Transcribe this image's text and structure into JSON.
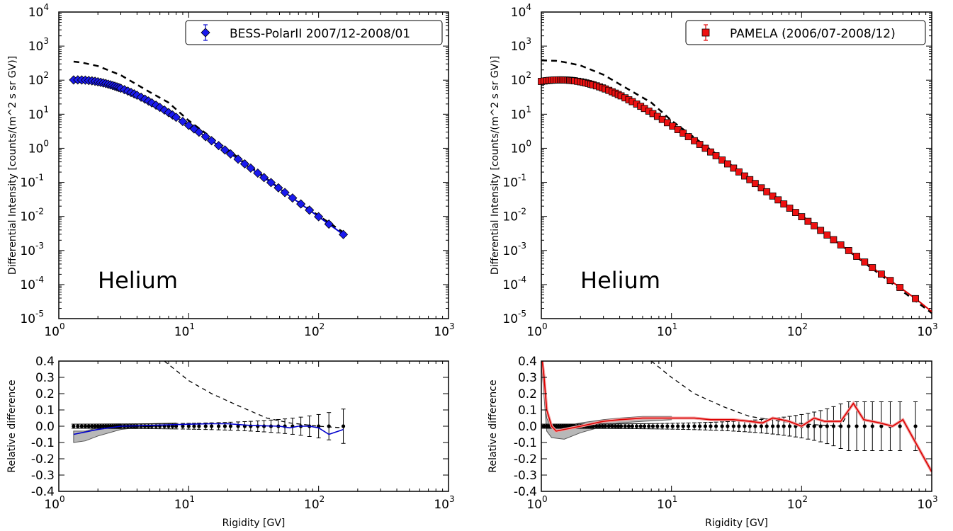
{
  "chart_data": [
    {
      "type": "scatter",
      "panel": "upper",
      "xscale": "log",
      "yscale": "log",
      "xlim": [
        1,
        1000
      ],
      "ylim": [
        1e-05,
        10000
      ],
      "x_ticks": [
        {
          "base": "10",
          "exp": "0",
          "v": 1
        },
        {
          "base": "10",
          "exp": "1",
          "v": 10
        },
        {
          "base": "10",
          "exp": "2",
          "v": 100
        },
        {
          "base": "10",
          "exp": "3",
          "v": 1000
        }
      ],
      "y_ticks": [
        {
          "base": "10",
          "exp": "-5",
          "v": -5
        },
        {
          "base": "10",
          "exp": "-4",
          "v": -4
        },
        {
          "base": "10",
          "exp": "-3",
          "v": -3
        },
        {
          "base": "10",
          "exp": "-2",
          "v": -2
        },
        {
          "base": "10",
          "exp": "-1",
          "v": -1
        },
        {
          "base": "10",
          "exp": "0",
          "v": 0
        },
        {
          "base": "10",
          "exp": "1",
          "v": 1
        },
        {
          "base": "10",
          "exp": "2",
          "v": 2
        },
        {
          "base": "10",
          "exp": "3",
          "v": 3
        },
        {
          "base": "10",
          "exp": "4",
          "v": 4
        }
      ],
      "ylabel": "Differential Intensity [counts/(m^2 s sr GV)]",
      "xlabel": "",
      "annotation": "Helium",
      "legend": {
        "label": "BESS-PolarII 2007/12-2008/01",
        "placement": "top-right",
        "marker": "diamond",
        "color": "#0000cc"
      },
      "marker_color": "#1a1aee",
      "model_color": "#0000cc",
      "grid": false,
      "rigidity_GV": [
        1.3,
        1.4,
        1.5,
        1.6,
        1.7,
        1.8,
        1.9,
        2.0,
        2.1,
        2.2,
        2.3,
        2.4,
        2.5,
        2.6,
        2.7,
        2.8,
        2.9,
        3.0,
        3.2,
        3.4,
        3.6,
        3.8,
        4.0,
        4.3,
        4.6,
        4.9,
        5.2,
        5.6,
        6.0,
        6.5,
        7.0,
        7.5,
        8.0,
        9.0,
        10,
        11,
        12,
        13.5,
        15,
        17,
        19,
        21,
        24,
        27,
        30,
        34,
        38,
        43,
        49,
        55,
        63,
        73,
        85,
        100,
        120,
        155
      ],
      "model_dashed": [
        [
          1.3,
          350
        ],
        [
          1.5,
          330
        ],
        [
          2,
          260
        ],
        [
          3,
          140
        ],
        [
          5,
          45
        ],
        [
          7,
          22
        ],
        [
          10,
          6.5
        ],
        [
          20,
          0.9
        ],
        [
          50,
          0.066
        ],
        [
          100,
          0.0105
        ],
        [
          155,
          0.0034
        ]
      ]
    },
    {
      "type": "scatter",
      "panel": "upper",
      "xscale": "log",
      "yscale": "log",
      "xlim": [
        1,
        1000
      ],
      "ylim": [
        1e-05,
        10000
      ],
      "x_ticks": [
        {
          "base": "10",
          "exp": "0",
          "v": 1
        },
        {
          "base": "10",
          "exp": "1",
          "v": 10
        },
        {
          "base": "10",
          "exp": "2",
          "v": 100
        },
        {
          "base": "10",
          "exp": "3",
          "v": 1000
        }
      ],
      "y_ticks": [
        {
          "base": "10",
          "exp": "-5",
          "v": -5
        },
        {
          "base": "10",
          "exp": "-4",
          "v": -4
        },
        {
          "base": "10",
          "exp": "-3",
          "v": -3
        },
        {
          "base": "10",
          "exp": "-2",
          "v": -2
        },
        {
          "base": "10",
          "exp": "-1",
          "v": -1
        },
        {
          "base": "10",
          "exp": "0",
          "v": 0
        },
        {
          "base": "10",
          "exp": "1",
          "v": 1
        },
        {
          "base": "10",
          "exp": "2",
          "v": 2
        },
        {
          "base": "10",
          "exp": "3",
          "v": 3
        },
        {
          "base": "10",
          "exp": "4",
          "v": 4
        }
      ],
      "ylabel": "Differential Intensity [counts/(m^2 s sr GV)]",
      "xlabel": "",
      "annotation": "Helium",
      "legend": {
        "label": "PAMELA (2006/07-2008/12)",
        "placement": "top-right",
        "marker": "square",
        "color": "#dd0000"
      },
      "marker_color": "#ee1111",
      "model_color": "#dd0000",
      "grid": false,
      "rigidity_GV": [
        1.0,
        1.05,
        1.1,
        1.15,
        1.2,
        1.25,
        1.3,
        1.35,
        1.4,
        1.45,
        1.5,
        1.55,
        1.6,
        1.65,
        1.7,
        1.75,
        1.8,
        1.9,
        2.0,
        2.1,
        2.2,
        2.3,
        2.4,
        2.5,
        2.65,
        2.8,
        2.95,
        3.1,
        3.3,
        3.5,
        3.7,
        3.9,
        4.1,
        4.4,
        4.7,
        5.0,
        5.4,
        5.8,
        6.2,
        6.7,
        7.2,
        7.8,
        8.5,
        9.3,
        10.2,
        11.2,
        12.3,
        13.5,
        15,
        16.5,
        18.2,
        20,
        22,
        24.5,
        27,
        30,
        33,
        36.5,
        40,
        44,
        49,
        54,
        60,
        66,
        73,
        81,
        90,
        100,
        112,
        125,
        140,
        157,
        176,
        200,
        230,
        265,
        305,
        350,
        410,
        480,
        570,
        750
      ]
    },
    {
      "type": "scatter",
      "panel": "lower",
      "xscale": "log",
      "xlim": [
        1,
        1000
      ],
      "ylim": [
        -0.4,
        0.4
      ],
      "x_ticks": [
        {
          "base": "10",
          "exp": "0",
          "v": 1
        },
        {
          "base": "10",
          "exp": "1",
          "v": 10
        },
        {
          "base": "10",
          "exp": "2",
          "v": 100
        },
        {
          "base": "10",
          "exp": "3",
          "v": 1000
        }
      ],
      "y_ticks": [
        "0.4",
        "0.3",
        "0.2",
        "0.1",
        "0.0",
        "-0.1",
        "-0.2",
        "-0.3",
        "-0.4"
      ],
      "xlabel": "Rigidity [GV]",
      "ylabel": "Relative difference",
      "line_color": "#0000cc",
      "grid": false,
      "rigidity_GV": [
        1.3,
        1.4,
        1.5,
        1.6,
        1.7,
        1.8,
        1.9,
        2.0,
        2.1,
        2.2,
        2.3,
        2.4,
        2.5,
        2.6,
        2.7,
        2.8,
        2.9,
        3.0,
        3.2,
        3.4,
        3.6,
        3.8,
        4.0,
        4.3,
        4.6,
        4.9,
        5.2,
        5.6,
        6.0,
        6.5,
        7.0,
        7.5,
        8.0,
        9.0,
        10,
        11,
        12,
        13.5,
        15,
        17,
        19,
        21,
        24,
        27,
        30,
        34,
        38,
        43,
        49,
        55,
        63,
        73,
        85,
        100,
        120,
        155
      ],
      "solid_line": [
        [
          1.3,
          -0.05
        ],
        [
          1.5,
          -0.04
        ],
        [
          2,
          -0.02
        ],
        [
          3,
          0.0
        ],
        [
          5,
          0.005
        ],
        [
          8,
          0.01
        ],
        [
          10,
          0.012
        ],
        [
          15,
          0.015
        ],
        [
          20,
          0.015
        ],
        [
          30,
          0.005
        ],
        [
          50,
          0.0
        ],
        [
          60,
          -0.01
        ],
        [
          70,
          0.0
        ],
        [
          85,
          0.0
        ],
        [
          100,
          -0.01
        ],
        [
          120,
          -0.05
        ],
        [
          155,
          -0.02
        ]
      ],
      "dashed_line": [
        [
          6.5,
          0.4
        ],
        [
          10,
          0.28
        ],
        [
          15,
          0.2
        ],
        [
          25,
          0.12
        ],
        [
          40,
          0.05
        ],
        [
          60,
          0.02
        ],
        [
          100,
          0.0
        ],
        [
          155,
          -0.01
        ]
      ],
      "band_upper": [
        [
          1.3,
          -0.03
        ],
        [
          1.6,
          -0.03
        ],
        [
          2,
          -0.01
        ],
        [
          3,
          0.01
        ],
        [
          5,
          0.015
        ],
        [
          8,
          0.02
        ]
      ],
      "band_lower": [
        [
          1.3,
          -0.1
        ],
        [
          1.6,
          -0.09
        ],
        [
          2,
          -0.06
        ],
        [
          3,
          -0.02
        ],
        [
          5,
          0.0
        ],
        [
          8,
          0.01
        ]
      ]
    },
    {
      "type": "scatter",
      "panel": "lower",
      "xscale": "log",
      "xlim": [
        1,
        1000
      ],
      "ylim": [
        -0.4,
        0.4
      ],
      "x_ticks": [
        {
          "base": "10",
          "exp": "0",
          "v": 1
        },
        {
          "base": "10",
          "exp": "1",
          "v": 10
        },
        {
          "base": "10",
          "exp": "2",
          "v": 100
        },
        {
          "base": "10",
          "exp": "3",
          "v": 1000
        }
      ],
      "y_ticks": [
        "0.4",
        "0.3",
        "0.2",
        "0.1",
        "0.0",
        "-0.1",
        "-0.2",
        "-0.3",
        "-0.4"
      ],
      "xlabel": "Rigidity [GV]",
      "ylabel": "Relative difference",
      "line_color": "#dd0000",
      "grid": false,
      "rigidity_GV": [
        1.0,
        1.05,
        1.1,
        1.15,
        1.2,
        1.25,
        1.3,
        1.35,
        1.4,
        1.45,
        1.5,
        1.55,
        1.6,
        1.65,
        1.7,
        1.75,
        1.8,
        1.9,
        2.0,
        2.1,
        2.2,
        2.3,
        2.4,
        2.5,
        2.65,
        2.8,
        2.95,
        3.1,
        3.3,
        3.5,
        3.7,
        3.9,
        4.1,
        4.4,
        4.7,
        5.0,
        5.4,
        5.8,
        6.2,
        6.7,
        7.2,
        7.8,
        8.5,
        9.3,
        10.2,
        11.2,
        12.3,
        13.5,
        15,
        16.5,
        18.2,
        20,
        22,
        24.5,
        27,
        30,
        33,
        36.5,
        40,
        44,
        49,
        54,
        60,
        66,
        73,
        81,
        90,
        100,
        112,
        125,
        140,
        157,
        176,
        200,
        230,
        265,
        305,
        350,
        410,
        480,
        570,
        750
      ],
      "solid_line": [
        [
          1.0,
          0.45
        ],
        [
          1.05,
          0.3
        ],
        [
          1.1,
          0.1
        ],
        [
          1.2,
          0.0
        ],
        [
          1.3,
          -0.03
        ],
        [
          1.5,
          -0.02
        ],
        [
          2,
          0.0
        ],
        [
          3,
          0.03
        ],
        [
          4,
          0.04
        ],
        [
          6,
          0.05
        ],
        [
          10,
          0.05
        ],
        [
          15,
          0.05
        ],
        [
          20,
          0.04
        ],
        [
          30,
          0.04
        ],
        [
          40,
          0.03
        ],
        [
          50,
          0.02
        ],
        [
          60,
          0.05
        ],
        [
          70,
          0.04
        ],
        [
          80,
          0.03
        ],
        [
          100,
          0.0
        ],
        [
          125,
          0.05
        ],
        [
          150,
          0.03
        ],
        [
          200,
          0.03
        ],
        [
          250,
          0.14
        ],
        [
          300,
          0.04
        ],
        [
          400,
          0.02
        ],
        [
          500,
          0.0
        ],
        [
          600,
          0.04
        ],
        [
          750,
          -0.1
        ],
        [
          1000,
          -0.28
        ]
      ],
      "dashed_line": [
        [
          7,
          0.4
        ],
        [
          10,
          0.3
        ],
        [
          15,
          0.2
        ],
        [
          25,
          0.12
        ],
        [
          40,
          0.06
        ],
        [
          70,
          0.03
        ],
        [
          120,
          0.01
        ],
        [
          200,
          0.0
        ],
        [
          250,
          0.14
        ],
        [
          300,
          0.04
        ],
        [
          500,
          0.0
        ],
        [
          600,
          0.04
        ]
      ],
      "band_upper": [
        [
          1.0,
          0.45
        ],
        [
          1.1,
          0.05
        ],
        [
          1.2,
          -0.01
        ],
        [
          1.5,
          0.0
        ],
        [
          2,
          0.02
        ],
        [
          3,
          0.04
        ],
        [
          4,
          0.05
        ],
        [
          6,
          0.06
        ],
        [
          10,
          0.06
        ]
      ],
      "band_lower": [
        [
          1.0,
          0.4
        ],
        [
          1.1,
          -0.03
        ],
        [
          1.2,
          -0.07
        ],
        [
          1.5,
          -0.08
        ],
        [
          2,
          -0.04
        ],
        [
          3,
          0.0
        ],
        [
          4,
          0.02
        ],
        [
          6,
          0.03
        ],
        [
          10,
          0.04
        ]
      ]
    }
  ]
}
